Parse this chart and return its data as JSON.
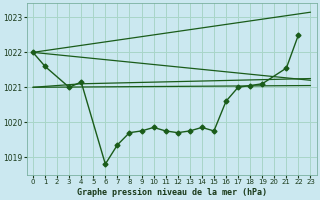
{
  "background_color": "#cbe8f0",
  "grid_color": "#a8d5c8",
  "line_color": "#1a5c1a",
  "title": "Graphe pression niveau de la mer (hPa)",
  "ylim": [
    1018.5,
    1023.4
  ],
  "xlim": [
    -0.5,
    23.5
  ],
  "yticks": [
    1019,
    1020,
    1021,
    1022,
    1023
  ],
  "xticks": [
    0,
    1,
    2,
    3,
    4,
    5,
    6,
    7,
    8,
    9,
    10,
    11,
    12,
    13,
    14,
    15,
    16,
    17,
    18,
    19,
    20,
    21,
    22,
    23
  ],
  "main_curve": {
    "x": [
      0,
      1,
      3,
      4,
      6,
      7,
      8,
      9,
      10,
      11,
      12,
      13,
      14,
      15,
      16,
      17,
      18,
      19,
      21,
      22
    ],
    "y": [
      1022.0,
      1021.6,
      1021.0,
      1021.15,
      1018.8,
      1019.35,
      1019.7,
      1019.75,
      1019.85,
      1019.75,
      1019.7,
      1019.75,
      1019.85,
      1019.75,
      1020.6,
      1021.0,
      1021.05,
      1021.1,
      1021.55,
      1022.5
    ]
  },
  "straight_lines": [
    {
      "x": [
        0,
        23
      ],
      "y": [
        1022.0,
        1023.15
      ]
    },
    {
      "x": [
        0,
        23
      ],
      "y": [
        1022.0,
        1021.2
      ]
    },
    {
      "x": [
        0,
        4,
        23
      ],
      "y": [
        1021.0,
        1021.1,
        1021.25
      ]
    },
    {
      "x": [
        0,
        23
      ],
      "y": [
        1021.0,
        1021.05
      ]
    }
  ]
}
